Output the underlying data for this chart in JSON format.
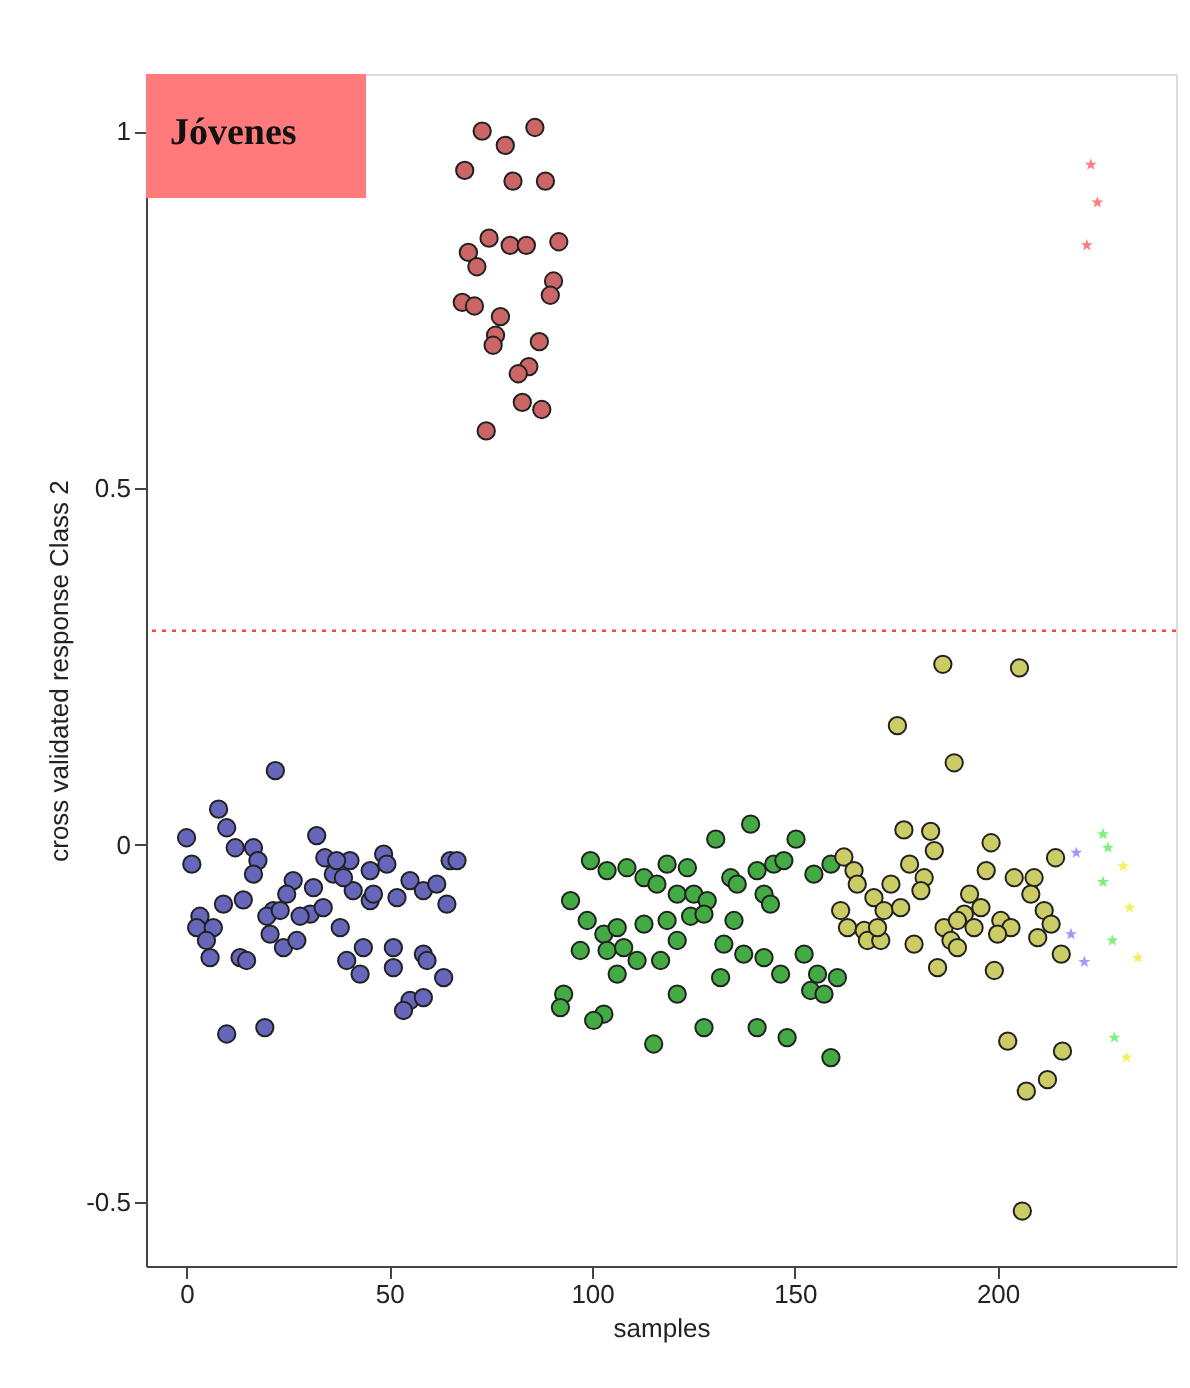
{
  "chart_data": {
    "type": "scatter",
    "xlabel": "samples",
    "ylabel": "cross validated response Class 2",
    "annotations": [
      "Jóvenes"
    ],
    "xlim": [
      -10,
      244
    ],
    "ylim": [
      -0.59,
      1.08
    ],
    "xticks": [
      0,
      50,
      100,
      150,
      200
    ],
    "yticks": [
      -0.5,
      0,
      0.5,
      1
    ],
    "grid": false,
    "marker": "circle",
    "ref_lines": [
      {
        "axis": "y",
        "value": 0.3,
        "color": "#ff4444",
        "line_style": "dotted"
      }
    ],
    "series": [
      {
        "color": "#6666bb",
        "x": [
          21.9,
          0.0,
          1.3,
          7.9,
          9.9,
          12.0,
          16.5,
          17.6,
          16.5,
          32.1,
          34.1,
          36.2,
          40.3,
          45.3,
          48.6,
          49.4,
          65.0,
          66.7,
          55.1,
          51.9,
          58.4,
          61.7,
          64.2,
          26.3,
          24.7,
          31.3,
          21.4,
          19.8,
          9.1,
          14.0,
          3.3,
          2.5,
          6.6,
          4.9,
          5.8,
          13.2,
          14.8,
          20.6,
          23.9,
          27.2,
          30.5,
          33.7,
          37.9,
          41.1,
          45.3,
          39.5,
          43.6,
          42.8,
          51.0,
          51.0,
          58.4,
          59.3,
          63.4,
          55.1,
          53.5,
          58.4,
          9.9,
          19.3,
          38.7,
          46.1,
          37.0,
          28.0,
          23.1
        ],
        "values": [
          0.104,
          0.01,
          -0.027,
          0.05,
          0.024,
          -0.004,
          -0.004,
          -0.022,
          -0.041,
          0.013,
          -0.018,
          -0.041,
          -0.022,
          -0.036,
          -0.013,
          -0.027,
          -0.022,
          -0.022,
          -0.05,
          -0.074,
          -0.064,
          -0.055,
          -0.083,
          -0.05,
          -0.069,
          -0.06,
          -0.092,
          -0.1,
          -0.083,
          -0.077,
          -0.1,
          -0.116,
          -0.116,
          -0.134,
          -0.158,
          -0.158,
          -0.162,
          -0.125,
          -0.144,
          -0.134,
          -0.097,
          -0.088,
          -0.116,
          -0.064,
          -0.078,
          -0.162,
          -0.144,
          -0.181,
          -0.144,
          -0.172,
          -0.153,
          -0.162,
          -0.186,
          -0.218,
          -0.232,
          -0.214,
          -0.265,
          -0.256,
          -0.046,
          -0.069,
          -0.022,
          -0.1,
          -0.092
        ]
      },
      {
        "color": "#cc6666",
        "x": [
          72.9,
          78.6,
          85.9,
          68.6,
          80.5,
          88.5,
          74.6,
          79.8,
          83.8,
          91.8,
          69.5,
          71.6,
          90.5,
          89.7,
          68.0,
          71.0,
          77.4,
          76.2,
          75.6,
          87.0,
          84.4,
          81.8,
          82.8,
          87.6,
          73.9
        ],
        "values": [
          1.0,
          0.98,
          1.005,
          0.945,
          0.93,
          0.93,
          0.85,
          0.84,
          0.84,
          0.845,
          0.83,
          0.81,
          0.79,
          0.77,
          0.76,
          0.755,
          0.74,
          0.714,
          0.7,
          0.705,
          0.67,
          0.66,
          0.62,
          0.61,
          0.58
        ]
      },
      {
        "color": "#44aa44",
        "x": [
          139.1,
          130.5,
          150.3,
          99.6,
          103.7,
          108.6,
          112.8,
          118.5,
          123.5,
          116.0,
          121.0,
          125.1,
          128.4,
          134.2,
          135.8,
          140.7,
          144.8,
          147.3,
          154.7,
          158.9,
          142.4,
          144.0,
          94.7,
          98.8,
          102.9,
          106.2,
          112.8,
          118.5,
          124.3,
          127.6,
          135.0,
          97.1,
          103.7,
          107.8,
          111.1,
          116.9,
          106.2,
          121.0,
          132.5,
          137.4,
          142.4,
          131.7,
          146.5,
          152.3,
          155.6,
          153.9,
          157.2,
          160.5,
          93.0,
          92.2,
          102.9,
          100.4,
          121.0,
          127.6,
          140.7,
          148.1,
          158.9,
          115.2
        ],
        "values": [
          0.029,
          0.008,
          0.008,
          -0.022,
          -0.036,
          -0.032,
          -0.046,
          -0.027,
          -0.032,
          -0.055,
          -0.069,
          -0.069,
          -0.078,
          -0.046,
          -0.055,
          -0.036,
          -0.027,
          -0.022,
          -0.041,
          -0.027,
          -0.069,
          -0.083,
          -0.078,
          -0.106,
          -0.125,
          -0.116,
          -0.111,
          -0.106,
          -0.1,
          -0.097,
          -0.106,
          -0.148,
          -0.148,
          -0.144,
          -0.162,
          -0.162,
          -0.181,
          -0.134,
          -0.139,
          -0.153,
          -0.158,
          -0.186,
          -0.181,
          -0.153,
          -0.181,
          -0.204,
          -0.209,
          -0.186,
          -0.209,
          -0.228,
          -0.237,
          -0.246,
          -0.209,
          -0.256,
          -0.256,
          -0.27,
          -0.298,
          -0.279
        ]
      },
      {
        "color": "#cccc66",
        "x": [
          186.5,
          205.4,
          175.3,
          189.3,
          176.9,
          183.5,
          184.4,
          198.4,
          214.3,
          162.1,
          164.6,
          165.4,
          178.3,
          181.9,
          181.1,
          197.2,
          204.1,
          209.0,
          208.2,
          193.1,
          169.5,
          173.7,
          161.3,
          172.0,
          176.1,
          191.8,
          195.9,
          211.5,
          163.0,
          167.1,
          186.8,
          190.1,
          194.2,
          200.8,
          203.3,
          213.2,
          209.9,
          167.9,
          171.2,
          179.4,
          188.5,
          200.0,
          190.1,
          215.7,
          185.2,
          199.2,
          202.5,
          216.0,
          212.3,
          207.1,
          206.1,
          170.4
        ],
        "values": [
          0.253,
          0.248,
          0.167,
          0.115,
          0.021,
          0.019,
          -0.008,
          0.003,
          -0.018,
          -0.017,
          -0.036,
          -0.055,
          -0.027,
          -0.046,
          -0.064,
          -0.036,
          -0.046,
          -0.046,
          -0.069,
          -0.069,
          -0.074,
          -0.055,
          -0.092,
          -0.092,
          -0.088,
          -0.097,
          -0.088,
          -0.092,
          -0.116,
          -0.12,
          -0.116,
          -0.106,
          -0.116,
          -0.106,
          -0.116,
          -0.111,
          -0.13,
          -0.134,
          -0.134,
          -0.139,
          -0.134,
          -0.125,
          -0.144,
          -0.153,
          -0.172,
          -0.176,
          -0.275,
          -0.289,
          -0.329,
          -0.345,
          -0.513,
          -0.116
        ]
      },
      {
        "color": "#8888ff",
        "marker": "star",
        "x": [
          219.4,
          218.1,
          221.4
        ],
        "values": [
          -0.011,
          -0.125,
          -0.164
        ]
      },
      {
        "color": "#66ee66",
        "marker": "star",
        "x": [
          226.0,
          227.2,
          226.0,
          228.3,
          228.8
        ],
        "values": [
          0.015,
          -0.004,
          -0.052,
          -0.134,
          -0.27
        ]
      },
      {
        "color": "#eeee44",
        "marker": "star",
        "x": [
          231.0,
          232.6,
          234.6,
          231.8
        ],
        "values": [
          -0.03,
          -0.088,
          -0.158,
          -0.298
        ]
      },
      {
        "color": "#ff6666",
        "marker": "star",
        "x": [
          223.0,
          224.6,
          222.0
        ],
        "values": [
          0.953,
          0.9,
          0.84
        ]
      }
    ]
  }
}
